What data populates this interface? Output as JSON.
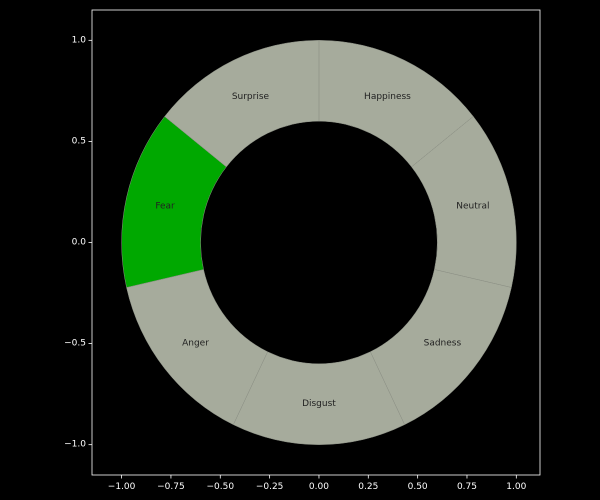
{
  "chart_data": {
    "type": "pie",
    "variant": "donut",
    "title": "",
    "xlabel": "",
    "ylabel": "",
    "xlim": [
      -1.15,
      1.12
    ],
    "ylim": [
      -1.15,
      1.15
    ],
    "grid": false,
    "outer_radius": 1.0,
    "inner_radius": 0.6,
    "start_angle_deg": 90,
    "direction": "clockwise",
    "background": "#000000",
    "default_color": "#a6ab9c",
    "highlight_color": "#00a800",
    "x_ticks": [
      "−1.00",
      "−0.75",
      "−0.50",
      "−0.25",
      "0.00",
      "0.25",
      "0.50",
      "0.75",
      "1.00"
    ],
    "x_tick_values": [
      -1.0,
      -0.75,
      -0.5,
      -0.25,
      0.0,
      0.25,
      0.5,
      0.75,
      1.0
    ],
    "y_ticks": [
      "−1.0",
      "−0.5",
      "0.0",
      "0.5",
      "1.0"
    ],
    "y_tick_values": [
      -1.0,
      -0.5,
      0.0,
      0.5,
      1.0
    ],
    "categories": [
      "Happiness",
      "Neutral",
      "Sadness",
      "Disgust",
      "Anger",
      "Fear",
      "Surprise"
    ],
    "values": [
      1,
      1,
      1,
      1,
      1,
      1,
      1
    ],
    "highlighted": [
      "Fear"
    ]
  }
}
